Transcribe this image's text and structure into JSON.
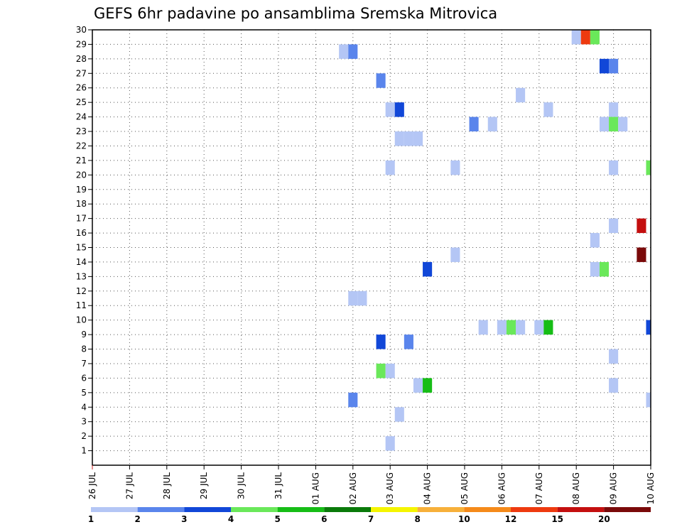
{
  "chart_data": {
    "type": "heatmap",
    "title": "GEFS 6hr padavine po ansamblima Sremska Mitrovica",
    "xlabel": "",
    "ylabel": "",
    "x_tick_labels": [
      "26 JUL",
      "27 JUL",
      "28 JUL",
      "29 JUL",
      "30 JUL",
      "31 JUL",
      "01 AUG",
      "02 AUG",
      "03 AUG",
      "04 AUG",
      "05 AUG",
      "06 AUG",
      "07 AUG",
      "08 AUG",
      "09 AUG",
      "10 AUG"
    ],
    "y_ticks": [
      1,
      2,
      3,
      4,
      5,
      6,
      7,
      8,
      9,
      10,
      11,
      12,
      13,
      14,
      15,
      16,
      17,
      18,
      19,
      20,
      21,
      22,
      23,
      24,
      25,
      26,
      27,
      28,
      29,
      30
    ],
    "xlim": [
      0,
      15
    ],
    "ylim": [
      0,
      30
    ],
    "grid": true,
    "colorbar": {
      "labels": [
        "1",
        "2",
        "3",
        "4",
        "5",
        "6",
        "7",
        "8",
        "10",
        "12",
        "15",
        "20"
      ],
      "colors": [
        "#b4c6f5",
        "#5a85ec",
        "#1147d8",
        "#6ae85a",
        "#16bd16",
        "#0a7a0a",
        "#f5f500",
        "#f7b03a",
        "#f58a1a",
        "#ee3a0f",
        "#c40f0f",
        "#7a0a0a"
      ]
    },
    "cells": [
      {
        "x": 13.0,
        "y": 29,
        "v": 1
      },
      {
        "x": 13.25,
        "y": 29,
        "v": 12
      },
      {
        "x": 13.5,
        "y": 29,
        "v": 4
      },
      {
        "x": 6.75,
        "y": 28,
        "v": 1
      },
      {
        "x": 7.0,
        "y": 28,
        "v": 2
      },
      {
        "x": 13.75,
        "y": 27,
        "v": 3
      },
      {
        "x": 14.0,
        "y": 27,
        "v": 2
      },
      {
        "x": 7.75,
        "y": 26,
        "v": 2
      },
      {
        "x": 11.5,
        "y": 25,
        "v": 1
      },
      {
        "x": 8.0,
        "y": 24,
        "v": 1
      },
      {
        "x": 8.25,
        "y": 24,
        "v": 3
      },
      {
        "x": 12.25,
        "y": 24,
        "v": 1
      },
      {
        "x": 14.0,
        "y": 24,
        "v": 1
      },
      {
        "x": 10.25,
        "y": 23,
        "v": 2
      },
      {
        "x": 10.75,
        "y": 23,
        "v": 1
      },
      {
        "x": 13.75,
        "y": 23,
        "v": 1
      },
      {
        "x": 14.0,
        "y": 23,
        "v": 4
      },
      {
        "x": 14.25,
        "y": 23,
        "v": 1
      },
      {
        "x": 8.25,
        "y": 22,
        "v": 1
      },
      {
        "x": 8.5,
        "y": 22,
        "v": 1
      },
      {
        "x": 8.75,
        "y": 22,
        "v": 1
      },
      {
        "x": 8.0,
        "y": 20,
        "v": 1
      },
      {
        "x": 9.75,
        "y": 20,
        "v": 1
      },
      {
        "x": 14.0,
        "y": 20,
        "v": 1
      },
      {
        "x": 15.0,
        "y": 20,
        "v": 4
      },
      {
        "x": 14.0,
        "y": 16,
        "v": 1
      },
      {
        "x": 14.75,
        "y": 16,
        "v": 15
      },
      {
        "x": 13.5,
        "y": 15,
        "v": 1
      },
      {
        "x": 9.75,
        "y": 14,
        "v": 1
      },
      {
        "x": 14.75,
        "y": 14,
        "v": 20
      },
      {
        "x": 9.0,
        "y": 13,
        "v": 3
      },
      {
        "x": 13.5,
        "y": 13,
        "v": 1
      },
      {
        "x": 13.75,
        "y": 13,
        "v": 4
      },
      {
        "x": 7.0,
        "y": 11,
        "v": 1
      },
      {
        "x": 7.25,
        "y": 11,
        "v": 1
      },
      {
        "x": 10.5,
        "y": 9,
        "v": 1
      },
      {
        "x": 11.0,
        "y": 9,
        "v": 1
      },
      {
        "x": 11.25,
        "y": 9,
        "v": 4
      },
      {
        "x": 11.5,
        "y": 9,
        "v": 1
      },
      {
        "x": 12.0,
        "y": 9,
        "v": 1
      },
      {
        "x": 12.25,
        "y": 9,
        "v": 5
      },
      {
        "x": 15.0,
        "y": 9,
        "v": 3
      },
      {
        "x": 7.75,
        "y": 8,
        "v": 3
      },
      {
        "x": 8.5,
        "y": 8,
        "v": 2
      },
      {
        "x": 14.0,
        "y": 7,
        "v": 1
      },
      {
        "x": 7.75,
        "y": 6,
        "v": 4
      },
      {
        "x": 8.0,
        "y": 6,
        "v": 1
      },
      {
        "x": 8.75,
        "y": 5,
        "v": 1
      },
      {
        "x": 9.0,
        "y": 5,
        "v": 5
      },
      {
        "x": 14.0,
        "y": 5,
        "v": 1
      },
      {
        "x": 7.0,
        "y": 4,
        "v": 2
      },
      {
        "x": 15.0,
        "y": 4,
        "v": 1
      },
      {
        "x": 8.25,
        "y": 3,
        "v": 1
      },
      {
        "x": 8.0,
        "y": 1,
        "v": 1
      }
    ]
  }
}
